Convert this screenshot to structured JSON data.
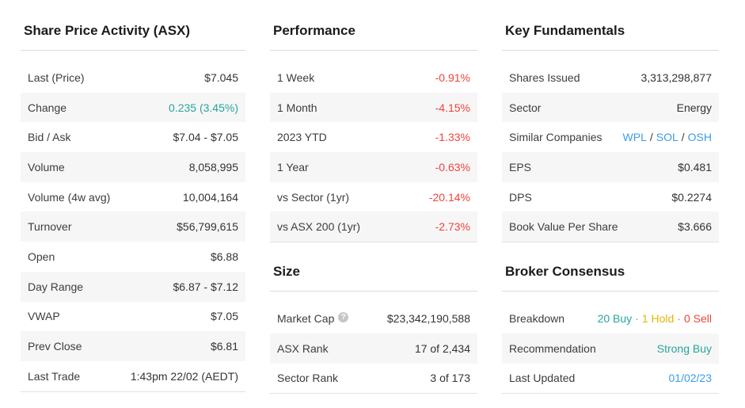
{
  "colors": {
    "positive": "#26a69a",
    "negative": "#f0443b",
    "hold": "#e3b505",
    "link": "#3b9de8"
  },
  "icons": {
    "help": "?"
  },
  "share_price": {
    "title": "Share Price Activity (ASX)",
    "rows": [
      {
        "label": "Last (Price)",
        "value": "$7.045"
      },
      {
        "label": "Change",
        "value": "0.235 (3.45%)"
      },
      {
        "label": "Bid / Ask",
        "value": "$7.04 - $7.05"
      },
      {
        "label": "Volume",
        "value": "8,058,995"
      },
      {
        "label": "Volume (4w avg)",
        "value": "10,004,164"
      },
      {
        "label": "Turnover",
        "value": "$56,799,615"
      },
      {
        "label": "Open",
        "value": "$6.88"
      },
      {
        "label": "Day Range",
        "value": "$6.87 - $7.12"
      },
      {
        "label": "VWAP",
        "value": "$7.05"
      },
      {
        "label": "Prev Close",
        "value": "$6.81"
      },
      {
        "label": "Last Trade",
        "value": "1:43pm 22/02 (AEDT)"
      }
    ]
  },
  "performance": {
    "title": "Performance",
    "rows": [
      {
        "label": "1 Week",
        "value": "-0.91%"
      },
      {
        "label": "1 Month",
        "value": "-4.15%"
      },
      {
        "label": "2023 YTD",
        "value": "-1.33%"
      },
      {
        "label": "1 Year",
        "value": "-0.63%"
      },
      {
        "label": "vs Sector (1yr)",
        "value": "-20.14%"
      },
      {
        "label": "vs ASX 200 (1yr)",
        "value": "-2.73%"
      }
    ]
  },
  "size": {
    "title": "Size",
    "rows": [
      {
        "label": "Market Cap",
        "value": "$23,342,190,588"
      },
      {
        "label": "ASX Rank",
        "value": "17 of 2,434"
      },
      {
        "label": "Sector Rank",
        "value": "3 of 173"
      }
    ]
  },
  "key_fundamentals": {
    "title": "Key Fundamentals",
    "rows": [
      {
        "label": "Shares Issued",
        "value": "3,313,298,877"
      },
      {
        "label": "Sector",
        "value": "Energy"
      },
      {
        "label": "Similar Companies",
        "tickers": [
          "WPL",
          "SOL",
          "OSH"
        ],
        "separator": "/"
      },
      {
        "label": "EPS",
        "value": "$0.481"
      },
      {
        "label": "DPS",
        "value": "$0.2274"
      },
      {
        "label": "Book Value Per Share",
        "value": "$3.666"
      }
    ]
  },
  "broker_consensus": {
    "title": "Broker Consensus",
    "rows": [
      {
        "label": "Breakdown",
        "buy": "20 Buy",
        "hold": "1 Hold",
        "sell": "0 Sell",
        "separator": "·"
      },
      {
        "label": "Recommendation",
        "value": "Strong Buy"
      },
      {
        "label": "Last Updated",
        "value": "01/02/23"
      }
    ]
  }
}
